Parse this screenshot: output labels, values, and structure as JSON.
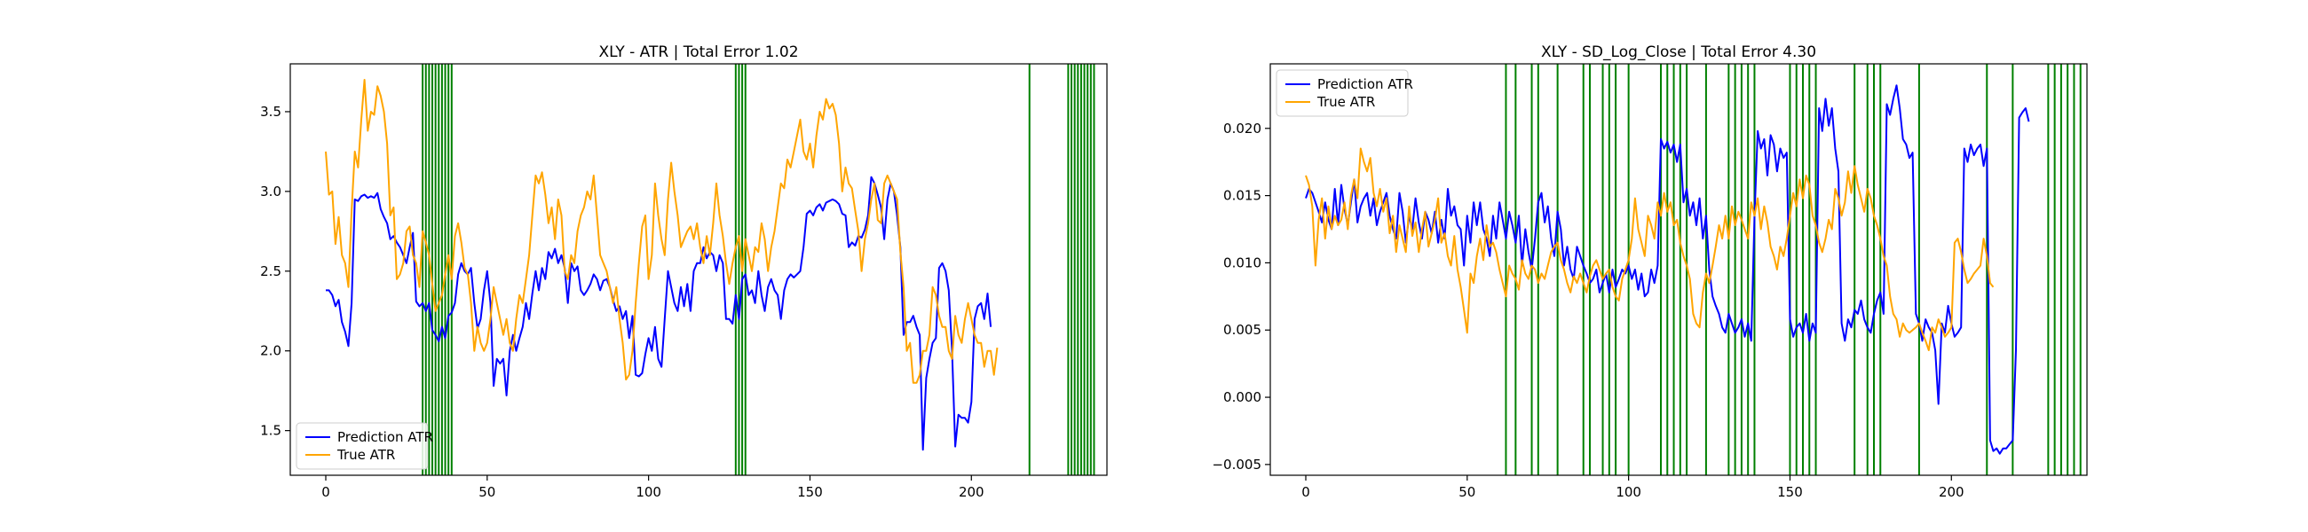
{
  "chart_data": [
    {
      "type": "line",
      "title": "XLY - ATR | Total Error 1.02",
      "xlabel": "",
      "ylabel": "",
      "xlim": [
        -11,
        242
      ],
      "ylim": [
        1.22,
        3.8
      ],
      "xticks": [
        0,
        50,
        100,
        150,
        200
      ],
      "xtick_labels": [
        "0",
        "50",
        "100",
        "150",
        "200"
      ],
      "yticks": [
        1.5,
        2.0,
        2.5,
        3.0,
        3.5
      ],
      "ytick_labels": [
        "1.5",
        "2.0",
        "2.5",
        "3.0",
        "3.5"
      ],
      "legend": {
        "placement": "lower-left",
        "entries": [
          "Prediction ATR",
          "True ATR"
        ]
      },
      "vlines_color": "#008000",
      "vlines": [
        30,
        31,
        32,
        33,
        34,
        35,
        36,
        37,
        38,
        39,
        127,
        128,
        129,
        130,
        218,
        230,
        231,
        232,
        233,
        234,
        235,
        236,
        237,
        238
      ],
      "series": [
        {
          "name": "Prediction ATR",
          "color": "#0000ff",
          "values": [
            2.38,
            2.38,
            2.35,
            2.28,
            2.32,
            2.18,
            2.12,
            2.03,
            2.3,
            2.95,
            2.94,
            2.97,
            2.98,
            2.96,
            2.97,
            2.96,
            2.99,
            2.89,
            2.84,
            2.8,
            2.7,
            2.72,
            2.68,
            2.65,
            2.6,
            2.55,
            2.65,
            2.74,
            2.31,
            2.28,
            2.3,
            2.25,
            2.3,
            2.13,
            2.1,
            2.06,
            2.15,
            2.08,
            2.22,
            2.24,
            2.3,
            2.48,
            2.55,
            2.5,
            2.48,
            2.52,
            2.3,
            2.14,
            2.2,
            2.38,
            2.5,
            2.3,
            1.78,
            1.95,
            1.92,
            1.95,
            1.72,
            2.0,
            2.1,
            2.0,
            2.08,
            2.15,
            2.3,
            2.2,
            2.36,
            2.5,
            2.38,
            2.52,
            2.45,
            2.62,
            2.58,
            2.64,
            2.55,
            2.6,
            2.52,
            2.3,
            2.55,
            2.5,
            2.53,
            2.38,
            2.35,
            2.38,
            2.42,
            2.48,
            2.45,
            2.38,
            2.44,
            2.45,
            2.4,
            2.32,
            2.25,
            2.28,
            2.2,
            2.25,
            2.08,
            2.22,
            1.85,
            1.84,
            1.86,
            1.98,
            2.08,
            2.0,
            2.15,
            1.95,
            1.9,
            2.2,
            2.5,
            2.4,
            2.3,
            2.25,
            2.4,
            2.28,
            2.42,
            2.25,
            2.5,
            2.55,
            2.55,
            2.65,
            2.58,
            2.62,
            2.6,
            2.5,
            2.6,
            2.55,
            2.2,
            2.2,
            2.17,
            2.35,
            2.2,
            2.45,
            2.48,
            2.35,
            2.38,
            2.3,
            2.5,
            2.35,
            2.25,
            2.4,
            2.45,
            2.38,
            2.35,
            2.2,
            2.38,
            2.45,
            2.48,
            2.46,
            2.48,
            2.5,
            2.65,
            2.86,
            2.88,
            2.85,
            2.9,
            2.92,
            2.88,
            2.93,
            2.94,
            2.95,
            2.94,
            2.92,
            2.86,
            2.85,
            2.65,
            2.68,
            2.66,
            2.72,
            2.71,
            2.76,
            2.85,
            3.09,
            3.05,
            2.98,
            2.9,
            2.7,
            2.95,
            3.05,
            3.0,
            2.85,
            2.65,
            2.1,
            2.18,
            2.18,
            2.22,
            2.15,
            2.1,
            1.38,
            1.83,
            1.95,
            2.05,
            2.08,
            2.52,
            2.55,
            2.5,
            2.38,
            2.0,
            1.4,
            1.6,
            1.58,
            1.58,
            1.55,
            1.68,
            2.2,
            2.28,
            2.3,
            2.2,
            2.36,
            2.15
          ]
        },
        {
          "name": "True ATR",
          "color": "#ffa500",
          "values": [
            3.25,
            2.98,
            3.0,
            2.67,
            2.84,
            2.6,
            2.55,
            2.4,
            2.88,
            3.25,
            3.15,
            3.45,
            3.7,
            3.38,
            3.5,
            3.48,
            3.66,
            3.6,
            3.5,
            3.3,
            2.85,
            2.9,
            2.45,
            2.48,
            2.55,
            2.75,
            2.78,
            2.6,
            2.55,
            2.4,
            2.75,
            2.68,
            2.6,
            2.42,
            2.25,
            2.3,
            2.35,
            2.48,
            2.6,
            2.45,
            2.72,
            2.8,
            2.68,
            2.52,
            2.48,
            2.3,
            2.0,
            2.15,
            2.05,
            2.0,
            2.05,
            2.2,
            2.4,
            2.3,
            2.2,
            2.1,
            2.2,
            2.05,
            2.0,
            2.2,
            2.35,
            2.3,
            2.45,
            2.6,
            2.85,
            3.1,
            3.05,
            3.12,
            2.98,
            2.8,
            2.9,
            2.7,
            2.95,
            2.85,
            2.5,
            2.45,
            2.6,
            2.55,
            2.75,
            2.85,
            2.9,
            3.0,
            2.95,
            3.1,
            2.85,
            2.6,
            2.55,
            2.5,
            2.4,
            2.3,
            2.4,
            2.2,
            2.05,
            1.82,
            1.85,
            2.0,
            2.3,
            2.55,
            2.78,
            2.85,
            2.45,
            2.6,
            3.05,
            2.85,
            2.7,
            2.6,
            2.95,
            3.18,
            3.0,
            2.85,
            2.65,
            2.7,
            2.75,
            2.78,
            2.7,
            2.8,
            2.65,
            2.55,
            2.72,
            2.6,
            2.8,
            3.05,
            2.85,
            2.72,
            2.55,
            2.42,
            2.55,
            2.65,
            2.72,
            2.5,
            2.7,
            2.6,
            2.5,
            2.65,
            2.62,
            2.8,
            2.7,
            2.5,
            2.65,
            2.75,
            2.9,
            3.05,
            3.02,
            3.2,
            3.15,
            3.25,
            3.35,
            3.45,
            3.25,
            3.2,
            3.3,
            3.15,
            3.35,
            3.5,
            3.45,
            3.58,
            3.52,
            3.55,
            3.48,
            3.3,
            3.0,
            3.15,
            3.05,
            3.02,
            2.88,
            2.75,
            2.5,
            2.7,
            2.8,
            2.95,
            3.05,
            2.82,
            2.8,
            3.05,
            3.1,
            3.05,
            3.0,
            2.95,
            2.62,
            2.4,
            2.0,
            2.05,
            1.8,
            1.8,
            1.85,
            2.0,
            2.0,
            2.1,
            2.4,
            2.35,
            2.22,
            2.15,
            2.15,
            2.0,
            1.95,
            2.22,
            2.1,
            2.05,
            2.2,
            2.3,
            2.2,
            2.1,
            2.05,
            2.05,
            1.9,
            2.0,
            2.0,
            1.85,
            2.02
          ]
        }
      ]
    },
    {
      "type": "line",
      "title": "XLY - SD_Log_Close | Total Error 4.30",
      "xlabel": "",
      "ylabel": "",
      "xlim": [
        -11,
        242
      ],
      "ylim": [
        -0.0058,
        0.0248
      ],
      "xticks": [
        0,
        50,
        100,
        150,
        200
      ],
      "xtick_labels": [
        "0",
        "50",
        "100",
        "150",
        "200"
      ],
      "yticks": [
        -0.005,
        0.0,
        0.005,
        0.01,
        0.015,
        0.02
      ],
      "ytick_labels": [
        "−0.005",
        "0.000",
        "0.005",
        "0.010",
        "0.015",
        "0.020"
      ],
      "legend": {
        "placement": "upper-left",
        "entries": [
          "Prediction ATR",
          "True ATR"
        ]
      },
      "vlines_color": "#008000",
      "vlines": [
        62,
        65,
        70,
        72,
        78,
        86,
        88,
        92,
        94,
        96,
        100,
        110,
        112,
        114,
        116,
        118,
        124,
        131,
        133,
        135,
        137,
        139,
        150,
        152,
        154,
        156,
        158,
        170,
        174,
        176,
        178,
        190,
        211,
        219,
        230,
        232,
        234,
        236,
        238,
        240
      ],
      "series": [
        {
          "name": "Prediction ATR",
          "color": "#0000ff",
          "values": [
            0.0148,
            0.0155,
            0.0152,
            0.0145,
            0.0138,
            0.013,
            0.0145,
            0.0132,
            0.0125,
            0.0155,
            0.0128,
            0.0158,
            0.014,
            0.0128,
            0.0145,
            0.0162,
            0.013,
            0.0142,
            0.0148,
            0.0152,
            0.0135,
            0.0148,
            0.0128,
            0.0138,
            0.0145,
            0.0152,
            0.0135,
            0.0125,
            0.0118,
            0.0152,
            0.0138,
            0.0115,
            0.0135,
            0.0125,
            0.0148,
            0.013,
            0.0118,
            0.0138,
            0.0132,
            0.0122,
            0.0138,
            0.0115,
            0.0132,
            0.0118,
            0.0155,
            0.0135,
            0.0142,
            0.0128,
            0.0125,
            0.0098,
            0.0135,
            0.0115,
            0.0145,
            0.0128,
            0.0145,
            0.0125,
            0.0118,
            0.0105,
            0.0135,
            0.0118,
            0.0145,
            0.0132,
            0.0118,
            0.0138,
            0.0128,
            0.0115,
            0.0135,
            0.0098,
            0.0125,
            0.0108,
            0.0095,
            0.0118,
            0.0145,
            0.0152,
            0.013,
            0.0142,
            0.0118,
            0.0105,
            0.0138,
            0.0125,
            0.0098,
            0.0112,
            0.0095,
            0.0088,
            0.0112,
            0.0105,
            0.0098,
            0.0092,
            0.0085,
            0.0088,
            0.0095,
            0.0078,
            0.0085,
            0.0092,
            0.0078,
            0.0095,
            0.0082,
            0.0088,
            0.0095,
            0.0092,
            0.0098,
            0.0088,
            0.0095,
            0.008,
            0.0092,
            0.0075,
            0.0078,
            0.0095,
            0.0085,
            0.0098,
            0.0192,
            0.0185,
            0.019,
            0.0182,
            0.0188,
            0.0175,
            0.0188,
            0.0145,
            0.0155,
            0.0135,
            0.0145,
            0.0128,
            0.0148,
            0.0118,
            0.0135,
            0.0095,
            0.0075,
            0.0068,
            0.0062,
            0.0052,
            0.0048,
            0.0062,
            0.0055,
            0.0048,
            0.0052,
            0.0058,
            0.0045,
            0.0055,
            0.0042,
            0.0135,
            0.0198,
            0.0185,
            0.0192,
            0.0165,
            0.0195,
            0.0188,
            0.0168,
            0.0185,
            0.0178,
            0.0182,
            0.0058,
            0.0045,
            0.0052,
            0.0055,
            0.0048,
            0.0062,
            0.0042,
            0.0055,
            0.0048,
            0.0215,
            0.0198,
            0.0222,
            0.0202,
            0.0215,
            0.0185,
            0.0168,
            0.0055,
            0.0042,
            0.0058,
            0.0052,
            0.0065,
            0.0062,
            0.0072,
            0.0058,
            0.0052,
            0.0048,
            0.0062,
            0.0072,
            0.0078,
            0.0062,
            0.0218,
            0.021,
            0.0222,
            0.0232,
            0.0215,
            0.0192,
            0.0188,
            0.0178,
            0.0182,
            0.0062,
            0.0055,
            0.0042,
            0.0058,
            0.0052,
            0.0048,
            0.0035,
            -0.0005,
            0.0055,
            0.0048,
            0.0068,
            0.0055,
            0.0045,
            0.0048,
            0.0052,
            0.0185,
            0.0175,
            0.0188,
            0.018,
            0.0185,
            0.0188,
            0.0172,
            0.0185,
            -0.0032,
            -0.004,
            -0.0038,
            -0.0042,
            -0.0038,
            -0.0038,
            -0.0035,
            -0.0032,
            0.0035,
            0.0208,
            0.0212,
            0.0215,
            0.0205
          ]
        },
        {
          "name": "True ATR",
          "color": "#ffa500",
          "values": [
            0.0165,
            0.0158,
            0.0142,
            0.0098,
            0.0132,
            0.0148,
            0.0118,
            0.0142,
            0.0125,
            0.0135,
            0.0128,
            0.0132,
            0.0145,
            0.0125,
            0.015,
            0.0162,
            0.0148,
            0.0185,
            0.0175,
            0.0168,
            0.0178,
            0.0152,
            0.0142,
            0.0155,
            0.0138,
            0.0148,
            0.0122,
            0.0135,
            0.0108,
            0.0128,
            0.0118,
            0.0108,
            0.0142,
            0.012,
            0.013,
            0.0108,
            0.0125,
            0.0138,
            0.0112,
            0.0122,
            0.0132,
            0.0148,
            0.0115,
            0.0122,
            0.0105,
            0.0098,
            0.012,
            0.0095,
            0.0082,
            0.0065,
            0.0048,
            0.0092,
            0.0085,
            0.0105,
            0.0118,
            0.0102,
            0.0128,
            0.0112,
            0.0115,
            0.0108,
            0.0095,
            0.0085,
            0.0075,
            0.0098,
            0.0092,
            0.0088,
            0.008,
            0.0102,
            0.0092,
            0.0088,
            0.0098,
            0.0095,
            0.0085,
            0.0092,
            0.0088,
            0.0098,
            0.0108,
            0.0112,
            0.0115,
            0.0102,
            0.0095,
            0.0085,
            0.0078,
            0.009,
            0.0085,
            0.0092,
            0.0085,
            0.0078,
            0.009,
            0.0098,
            0.0102,
            0.0095,
            0.0088,
            0.0092,
            0.0095,
            0.0082,
            0.0075,
            0.0072,
            0.0088,
            0.0095,
            0.0102,
            0.0118,
            0.0148,
            0.0125,
            0.0115,
            0.0105,
            0.0135,
            0.0128,
            0.0118,
            0.0145,
            0.0135,
            0.0152,
            0.0138,
            0.0145,
            0.0128,
            0.0132,
            0.0115,
            0.0105,
            0.0098,
            0.0088,
            0.0062,
            0.0055,
            0.0052,
            0.0078,
            0.0092,
            0.0085,
            0.0098,
            0.0112,
            0.0128,
            0.0118,
            0.0135,
            0.0118,
            0.0142,
            0.0128,
            0.0138,
            0.0132,
            0.0125,
            0.0118,
            0.0145,
            0.0135,
            0.0148,
            0.0125,
            0.0142,
            0.013,
            0.0112,
            0.0105,
            0.0095,
            0.0112,
            0.0105,
            0.0118,
            0.0135,
            0.0152,
            0.0142,
            0.0162,
            0.0148,
            0.0165,
            0.0158,
            0.0135,
            0.0128,
            0.0115,
            0.0108,
            0.0118,
            0.0132,
            0.0125,
            0.0155,
            0.0148,
            0.0135,
            0.0145,
            0.0168,
            0.0152,
            0.0172,
            0.0158,
            0.0148,
            0.0138,
            0.0155,
            0.0148,
            0.0135,
            0.0128,
            0.0118,
            0.0105,
            0.0098,
            0.0075,
            0.0062,
            0.0058,
            0.0045,
            0.0055,
            0.005,
            0.0048,
            0.005,
            0.0052,
            0.0055,
            0.0048,
            0.0042,
            0.0035,
            0.0052,
            0.0048,
            0.0058,
            0.0052,
            0.0045,
            0.0048,
            0.0052,
            0.0115,
            0.0118,
            0.0108,
            0.0095,
            0.0085,
            0.0088,
            0.0092,
            0.0095,
            0.0098,
            0.0118,
            0.0105,
            0.0085,
            0.0082
          ]
        }
      ]
    }
  ]
}
